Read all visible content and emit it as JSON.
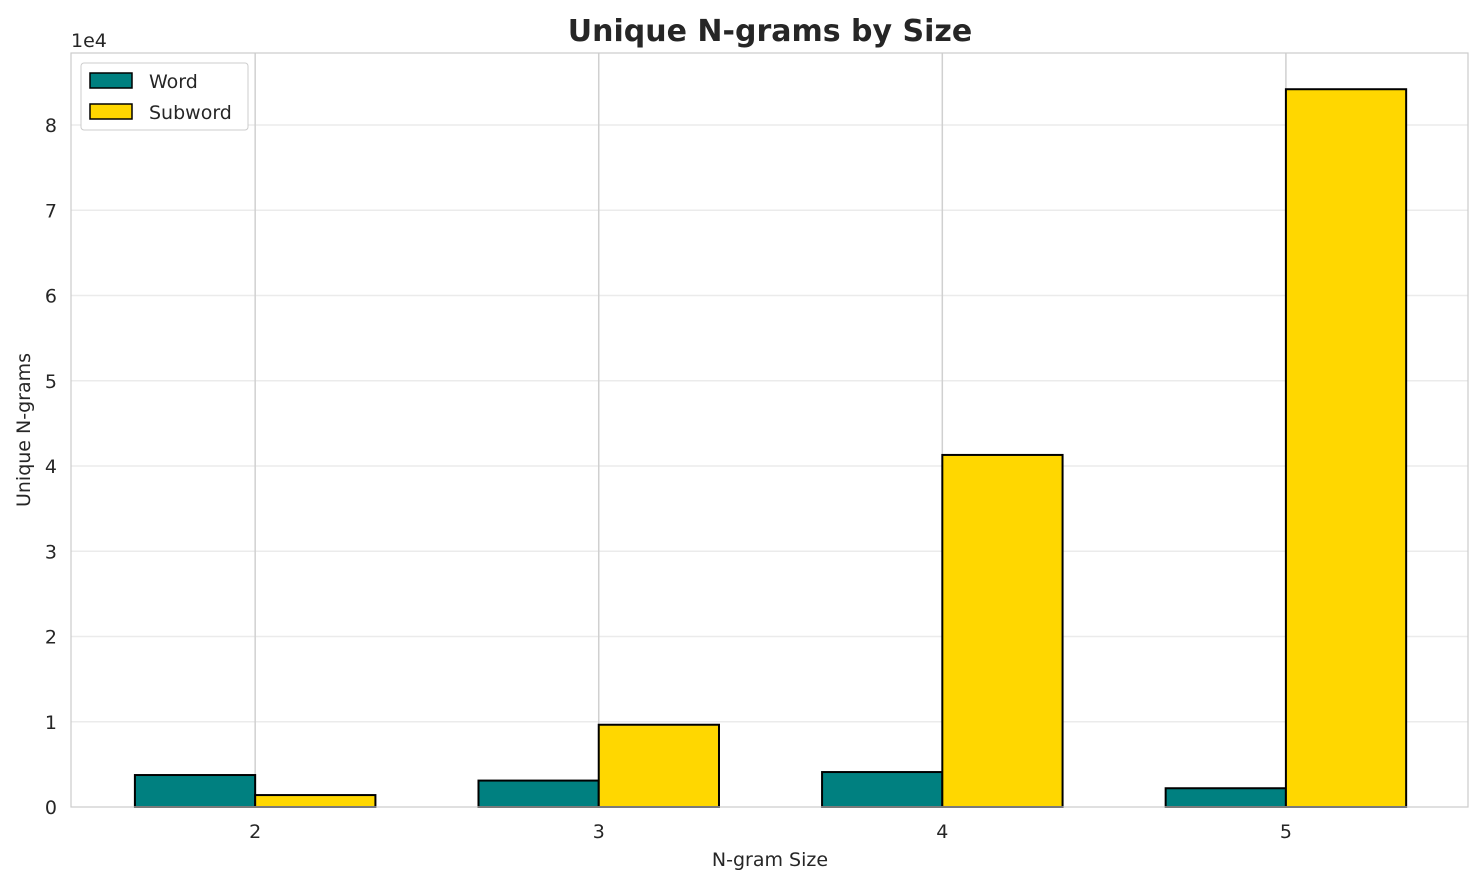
{
  "chart_data": {
    "type": "bar",
    "title": "Unique N-grams by Size",
    "xlabel": "N-gram Size",
    "ylabel": "Unique N-grams",
    "y_offset_label": "1e4",
    "categories": [
      "2",
      "3",
      "4",
      "5"
    ],
    "series": [
      {
        "name": "Word",
        "color": "#008080",
        "values": [
          3750,
          3100,
          4100,
          2200
        ]
      },
      {
        "name": "Subword",
        "color": "#FFD700",
        "values": [
          1400,
          9650,
          41300,
          84200
        ]
      }
    ],
    "ylim": [
      0,
      88450
    ],
    "yticks": [
      0,
      10000,
      20000,
      30000,
      40000,
      50000,
      60000,
      70000,
      80000
    ],
    "ytick_labels": [
      "0",
      "1",
      "2",
      "3",
      "4",
      "5",
      "6",
      "7",
      "8"
    ],
    "grid": true,
    "legend": "top-left"
  }
}
